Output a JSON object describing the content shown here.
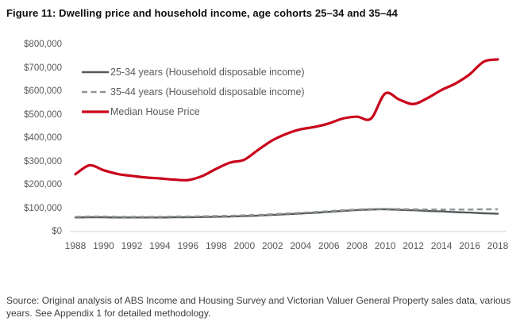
{
  "figure": {
    "title": "Figure 11: Dwelling price and household income, age cohorts 25–34 and 35–44",
    "source": "Source: Original analysis of ABS Income and Housing Survey and Victorian Valuer General Property sales data, various years. See Appendix 1 for detailed methodology."
  },
  "colors": {
    "axis_line": "#d9d9d9",
    "axis_text": "#595959",
    "legend_text": "#595959",
    "title_text": "#0d0d0d"
  },
  "chart_data": {
    "type": "line",
    "title": "Figure 11: Dwelling price and household income, age cohorts 25–34 and 35–44",
    "x": [
      1988,
      1989,
      1990,
      1991,
      1992,
      1993,
      1994,
      1995,
      1996,
      1997,
      1998,
      1999,
      2000,
      2001,
      2002,
      2003,
      2004,
      2005,
      2006,
      2007,
      2008,
      2009,
      2010,
      2011,
      2012,
      2013,
      2014,
      2015,
      2016,
      2017,
      2018
    ],
    "x_tick_interval": 2,
    "x_tick_labels": [
      "1988",
      "1990",
      "1992",
      "1994",
      "1996",
      "1998",
      "2000",
      "2002",
      "2004",
      "2006",
      "2008",
      "2010",
      "2012",
      "2014",
      "2016",
      "2018"
    ],
    "ylim": [
      0,
      800000
    ],
    "y_tick_interval": 100000,
    "y_tick_labels": [
      "$0",
      "$100,000",
      "$200,000",
      "$300,000",
      "$400,000",
      "$500,000",
      "$600,000",
      "$700,000",
      "$800,000"
    ],
    "grid": false,
    "legend_position": "top-left-inside",
    "series": [
      {
        "name": "25-34 years (Household disposable income)",
        "color": "#54585a",
        "dash": null,
        "width": 2.4,
        "values": [
          60000,
          61000,
          61000,
          60000,
          60000,
          60000,
          60000,
          61000,
          61000,
          62000,
          63000,
          64000,
          66000,
          68000,
          71000,
          74000,
          77000,
          80000,
          84000,
          88000,
          92000,
          94000,
          95000,
          93000,
          91000,
          88000,
          86000,
          83000,
          81000,
          78000,
          76000
        ]
      },
      {
        "name": "35-44 years (Household disposable income)",
        "color": "#8d9397",
        "dash": "7 4.5",
        "width": 2.4,
        "values": [
          63000,
          64000,
          64000,
          63000,
          63000,
          63000,
          63000,
          64000,
          64000,
          65000,
          66000,
          67000,
          69000,
          71000,
          74000,
          77000,
          80000,
          83000,
          87000,
          91000,
          94000,
          96000,
          97000,
          96000,
          95000,
          94000,
          94000,
          94000,
          94000,
          95000,
          95000
        ]
      },
      {
        "name": "Median House Price",
        "color": "#c9011a",
        "dash": null,
        "width": 3.2,
        "values": [
          245000,
          283000,
          262000,
          246000,
          238000,
          231000,
          227000,
          222000,
          220000,
          237000,
          268000,
          295000,
          307000,
          350000,
          390000,
          418000,
          437000,
          447000,
          462000,
          483000,
          491000,
          483000,
          590000,
          564000,
          545000,
          570000,
          605000,
          633000,
          672000,
          726000,
          736000
        ]
      }
    ]
  }
}
